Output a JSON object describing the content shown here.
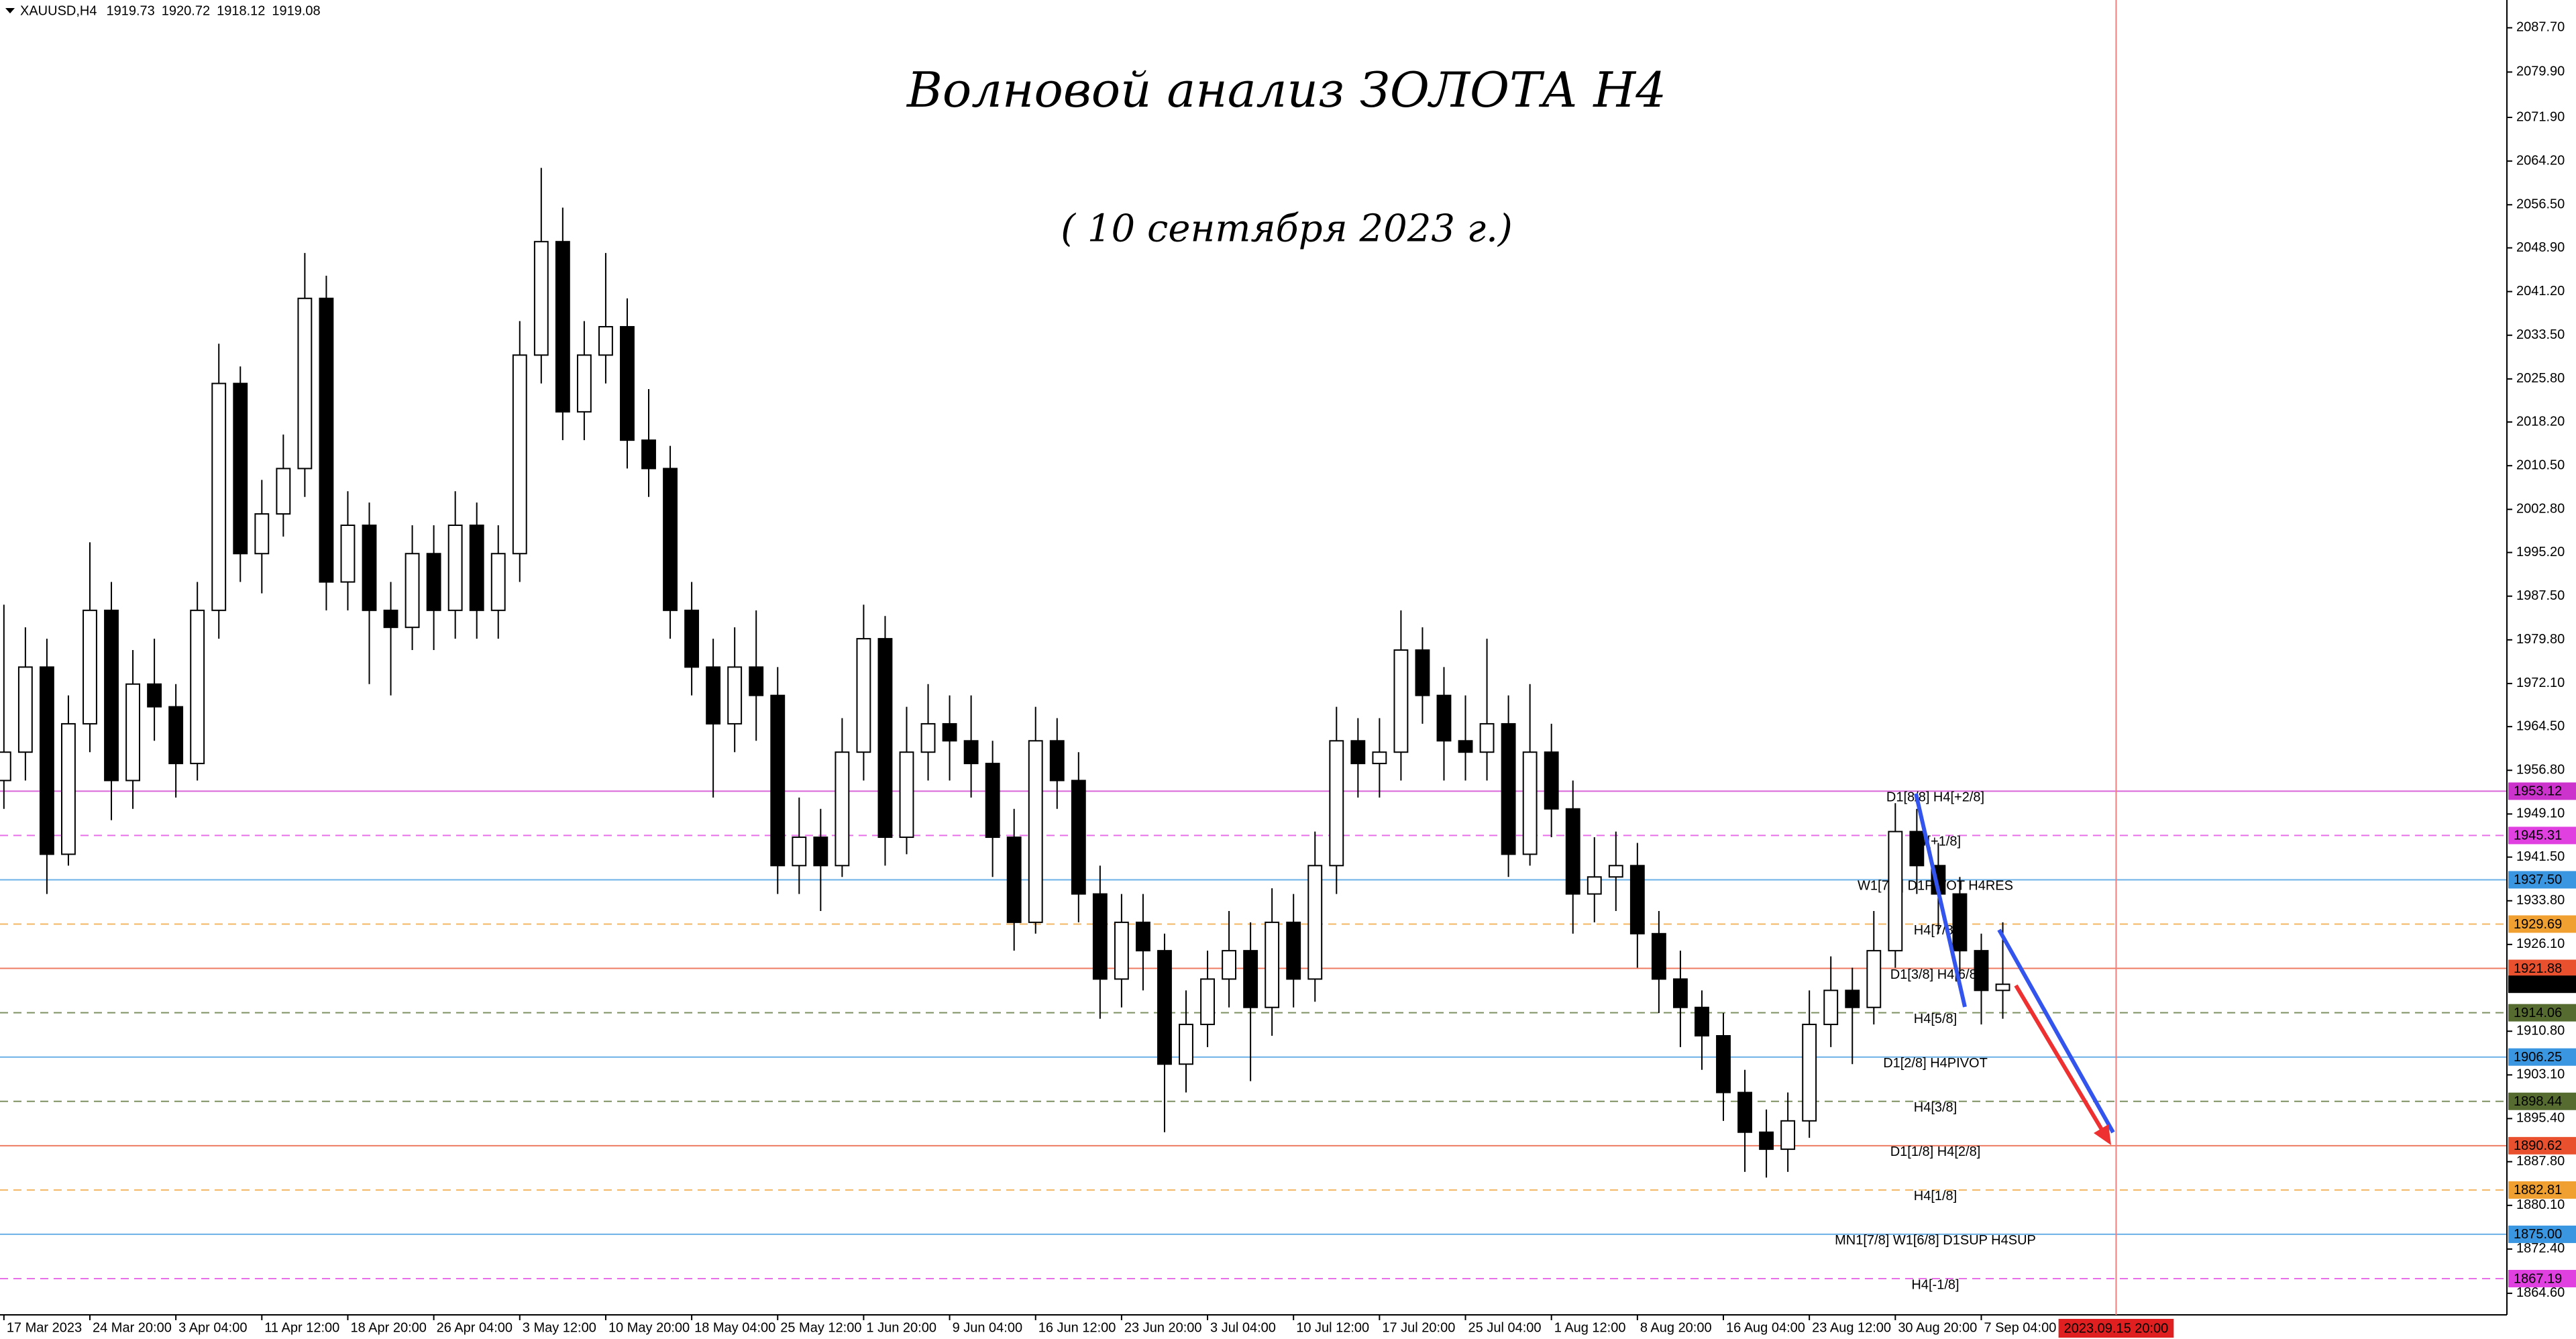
{
  "chart_data": {
    "type": "candlestick",
    "title": "Волновой анализ ЗОЛОТА H4",
    "subtitle": "( 10 сентября 2023 г.)",
    "symbol": "XAUUSD,H4",
    "header_prices": [
      1919.73,
      1920.72,
      1918.12,
      1919.08
    ],
    "x": [
      0,
      11,
      22,
      33,
      44,
      55,
      66,
      77,
      88,
      99,
      110,
      121,
      132,
      143,
      154,
      165,
      176,
      187,
      198,
      209,
      220,
      231,
      242,
      253,
      264,
      275,
      286,
      297,
      308,
      319,
      330,
      341,
      352,
      363,
      374,
      385,
      396,
      407,
      418,
      429,
      440,
      451,
      462,
      473,
      484,
      495,
      506,
      517,
      528,
      539,
      550,
      561,
      572,
      583,
      594,
      605,
      616,
      627,
      638,
      649,
      660,
      671,
      682,
      693,
      704,
      715,
      726,
      737,
      748,
      759,
      770,
      781,
      792,
      803,
      814,
      825,
      836,
      847,
      858,
      869,
      880,
      891,
      902,
      913,
      924,
      935,
      946,
      957,
      968,
      979,
      990,
      1001,
      1012,
      1023
    ],
    "open": [
      1955,
      1960,
      1975,
      1942,
      1965,
      1985,
      1955,
      1972,
      1968,
      1958,
      1985,
      2025,
      1995,
      2002,
      2010,
      2040,
      1990,
      2000,
      1985,
      1982,
      1995,
      1985,
      2000,
      1985,
      1995,
      2030,
      2050,
      2020,
      2030,
      2035,
      2015,
      2010,
      1985,
      1975,
      1965,
      1975,
      1970,
      1940,
      1945,
      1940,
      1960,
      1980,
      1945,
      1960,
      1965,
      1962,
      1958,
      1945,
      1930,
      1962,
      1955,
      1935,
      1920,
      1930,
      1925,
      1905,
      1912,
      1920,
      1925,
      1915,
      1930,
      1920,
      1940,
      1962,
      1958,
      1960,
      1978,
      1970,
      1962,
      1960,
      1965,
      1942,
      1960,
      1950,
      1935,
      1938,
      1940,
      1928,
      1920,
      1915,
      1910,
      1900,
      1893,
      1890,
      1895,
      1912,
      1918,
      1915,
      1925,
      1946,
      1940,
      1935,
      1925,
      1918
    ],
    "high": [
      1986,
      1982,
      1980,
      1970,
      1997,
      1990,
      1978,
      1980,
      1972,
      1990,
      2032,
      2028,
      2008,
      2016,
      2048,
      2044,
      2006,
      2004,
      1990,
      2000,
      2000,
      2006,
      2004,
      2000,
      2036,
      2063,
      2056,
      2036,
      2048,
      2040,
      2024,
      2014,
      1990,
      1980,
      1982,
      1985,
      1975,
      1952,
      1950,
      1966,
      1986,
      1984,
      1968,
      1972,
      1970,
      1970,
      1962,
      1950,
      1968,
      1966,
      1960,
      1940,
      1935,
      1935,
      1928,
      1918,
      1925,
      1932,
      1930,
      1936,
      1935,
      1946,
      1968,
      1966,
      1966,
      1985,
      1982,
      1975,
      1970,
      1980,
      1970,
      1972,
      1965,
      1955,
      1945,
      1946,
      1944,
      1932,
      1925,
      1918,
      1914,
      1904,
      1897,
      1900,
      1918,
      1924,
      1922,
      1932,
      1951,
      1950,
      1944,
      1938,
      1928,
      1930
    ],
    "low": [
      1950,
      1955,
      1935,
      1940,
      1960,
      1948,
      1950,
      1962,
      1952,
      1955,
      1980,
      1990,
      1988,
      1998,
      2005,
      1985,
      1985,
      1972,
      1970,
      1978,
      1978,
      1980,
      1980,
      1980,
      1990,
      2025,
      2015,
      2015,
      2025,
      2010,
      2005,
      1980,
      1970,
      1952,
      1960,
      1962,
      1935,
      1935,
      1932,
      1938,
      1955,
      1940,
      1942,
      1955,
      1955,
      1952,
      1938,
      1925,
      1928,
      1950,
      1930,
      1913,
      1915,
      1918,
      1893,
      1900,
      1908,
      1915,
      1902,
      1910,
      1915,
      1916,
      1935,
      1952,
      1952,
      1955,
      1965,
      1955,
      1955,
      1955,
      1938,
      1940,
      1945,
      1928,
      1930,
      1932,
      1922,
      1914,
      1908,
      1904,
      1895,
      1886,
      1885,
      1886,
      1892,
      1908,
      1905,
      1912,
      1922,
      1935,
      1928,
      1918,
      1912,
      1913
    ],
    "close": [
      1960,
      1975,
      1942,
      1965,
      1985,
      1955,
      1972,
      1968,
      1958,
      1985,
      2025,
      1995,
      2002,
      2010,
      2040,
      1990,
      2000,
      1985,
      1982,
      1995,
      1985,
      2000,
      1985,
      1995,
      2030,
      2050,
      2020,
      2030,
      2035,
      2015,
      2010,
      1985,
      1975,
      1965,
      1975,
      1970,
      1940,
      1945,
      1940,
      1960,
      1980,
      1945,
      1960,
      1965,
      1962,
      1958,
      1945,
      1930,
      1962,
      1955,
      1935,
      1920,
      1930,
      1925,
      1905,
      1912,
      1920,
      1925,
      1915,
      1930,
      1920,
      1940,
      1962,
      1958,
      1960,
      1978,
      1970,
      1962,
      1960,
      1965,
      1942,
      1960,
      1950,
      1935,
      1938,
      1940,
      1928,
      1920,
      1915,
      1910,
      1900,
      1893,
      1890,
      1895,
      1912,
      1918,
      1915,
      1925,
      1946,
      1940,
      1935,
      1925,
      1918,
      1919.08
    ],
    "xlim": [
      -2,
      1281
    ],
    "ylim": [
      1860.8,
      2092.6
    ],
    "xticks": [
      {
        "value": 0,
        "label": "17 Mar 2023"
      },
      {
        "value": 44,
        "label": "24 Mar 20:00"
      },
      {
        "value": 88,
        "label": "3 Apr 04:00"
      },
      {
        "value": 132,
        "label": "11 Apr 12:00"
      },
      {
        "value": 176,
        "label": "18 Apr 20:00"
      },
      {
        "value": 220,
        "label": "26 Apr 04:00"
      },
      {
        "value": 264,
        "label": "3 May 12:00"
      },
      {
        "value": 308,
        "label": "10 May 20:00"
      },
      {
        "value": 352,
        "label": "18 May 04:00"
      },
      {
        "value": 396,
        "label": "25 May 12:00"
      },
      {
        "value": 440,
        "label": "1 Jun 20:00"
      },
      {
        "value": 484,
        "label": "9 Jun 04:00"
      },
      {
        "value": 528,
        "label": "16 Jun 12:00"
      },
      {
        "value": 572,
        "label": "23 Jun 20:00"
      },
      {
        "value": 616,
        "label": "3 Jul 04:00"
      },
      {
        "value": 660,
        "label": "10 Jul 12:00"
      },
      {
        "value": 704,
        "label": "17 Jul 20:00"
      },
      {
        "value": 748,
        "label": "25 Jul 04:00"
      },
      {
        "value": 792,
        "label": "1 Aug 12:00"
      },
      {
        "value": 836,
        "label": "8 Aug 20:00"
      },
      {
        "value": 880,
        "label": "16 Aug 04:00"
      },
      {
        "value": 924,
        "label": "23 Aug 12:00"
      },
      {
        "value": 968,
        "label": "30 Aug 20:00"
      },
      {
        "value": 1012,
        "label": "7 Sep 04:00"
      }
    ],
    "yticks": [
      {
        "value": 2087.7,
        "label": "2087.70"
      },
      {
        "value": 2079.9,
        "label": "2079.90"
      },
      {
        "value": 2071.9,
        "label": "2071.90"
      },
      {
        "value": 2064.2,
        "label": "2064.20"
      },
      {
        "value": 2056.5,
        "label": "2056.50"
      },
      {
        "value": 2048.9,
        "label": "2048.90"
      },
      {
        "value": 2041.2,
        "label": "2041.20"
      },
      {
        "value": 2033.5,
        "label": "2033.50"
      },
      {
        "value": 2025.8,
        "label": "2025.80"
      },
      {
        "value": 2018.2,
        "label": "2018.20"
      },
      {
        "value": 2010.5,
        "label": "2010.50"
      },
      {
        "value": 2002.8,
        "label": "2002.80"
      },
      {
        "value": 1995.2,
        "label": "1995.20"
      },
      {
        "value": 1987.5,
        "label": "1987.50"
      },
      {
        "value": 1979.8,
        "label": "1979.80"
      },
      {
        "value": 1972.1,
        "label": "1972.10"
      },
      {
        "value": 1964.5,
        "label": "1964.50"
      },
      {
        "value": 1956.8,
        "label": "1956.80"
      },
      {
        "value": 1949.1,
        "label": "1949.10"
      },
      {
        "value": 1941.5,
        "label": "1941.50"
      },
      {
        "value": 1933.8,
        "label": "1933.80"
      },
      {
        "value": 1926.1,
        "label": "1926.10"
      },
      {
        "value": 1910.8,
        "label": "1910.80"
      },
      {
        "value": 1903.1,
        "label": "1903.10"
      },
      {
        "value": 1895.4,
        "label": "1895.40"
      },
      {
        "value": 1887.8,
        "label": "1887.80"
      },
      {
        "value": 1880.1,
        "label": "1880.10"
      },
      {
        "value": 1872.4,
        "label": "1872.40"
      },
      {
        "value": 1864.6,
        "label": "1864.60"
      }
    ],
    "levels": [
      {
        "price": 1953.12,
        "name": "D1[8/8] H4[+2/8]",
        "color": "#cc33cc",
        "dashed": false
      },
      {
        "price": 1945.31,
        "name": "H4[+1/8]",
        "color": "#e040e0",
        "dashed": true
      },
      {
        "price": 1937.5,
        "price_label": "1937.50",
        "name": "W1[7/8] D1PIVOT H4RES",
        "color": "#3a96e0",
        "dashed": false
      },
      {
        "price": 1929.69,
        "name": "H4[7/8]",
        "color": "#f0a030",
        "dashed": true
      },
      {
        "price": 1921.88,
        "name": "D1[3/8] H4[6/8]",
        "color": "#e8502e",
        "dashed": false
      },
      {
        "price": 1914.06,
        "name": "H4[5/8]",
        "color": "#556b2f",
        "dashed": true
      },
      {
        "price": 1906.25,
        "name": "D1[2/8] H4PIVOT",
        "color": "#3a96e0",
        "dashed": false
      },
      {
        "price": 1898.44,
        "name": "H4[3/8]",
        "color": "#556b2f",
        "dashed": true
      },
      {
        "price": 1890.62,
        "name": "D1[1/8] H4[2/8]",
        "color": "#e8502e",
        "dashed": false
      },
      {
        "price": 1882.81,
        "name": "H4[1/8]",
        "color": "#f0a030",
        "dashed": true
      },
      {
        "price": 1875.0,
        "price_label": "1875.00",
        "name": "MN1[7/8] W1[6/8] D1SUP H4SUP",
        "color": "#3a96e0",
        "dashed": false
      },
      {
        "price": 1867.19,
        "name": "H4[-1/8]",
        "color": "#e040e0",
        "dashed": true
      }
    ],
    "last_price": 1919.08,
    "cursor": {
      "x": 1081,
      "label": "2023.09.15 20:00"
    }
  }
}
